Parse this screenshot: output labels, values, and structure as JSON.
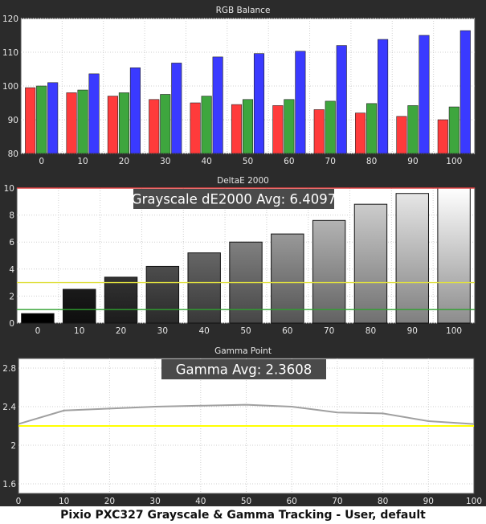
{
  "caption": "Pixio PXC327 Grayscale & Gamma Tracking - User, default",
  "chart_data": [
    {
      "type": "bar",
      "title": "RGB Balance",
      "categories": [
        "0",
        "10",
        "20",
        "30",
        "40",
        "50",
        "60",
        "70",
        "80",
        "90",
        "100"
      ],
      "ylim": [
        80,
        120
      ],
      "yticks": [
        "80",
        "90",
        "100",
        "110",
        "120"
      ],
      "grid": true,
      "series": [
        {
          "color": "#ff3b3b",
          "values": [
            99.5,
            98.0,
            97.0,
            96.0,
            95.0,
            94.5,
            94.2,
            93.0,
            92.0,
            91.0,
            90.0
          ]
        },
        {
          "color": "#3ea63e",
          "values": [
            100.0,
            98.8,
            98.0,
            97.5,
            97.0,
            96.0,
            96.0,
            95.5,
            94.8,
            94.2,
            93.8
          ]
        },
        {
          "color": "#3a3aff",
          "values": [
            101.0,
            103.6,
            105.4,
            106.8,
            108.6,
            109.6,
            110.3,
            112.0,
            113.8,
            115.0,
            116.4
          ]
        }
      ]
    },
    {
      "type": "bar",
      "title": "DeltaE 2000",
      "annotation": "Grayscale dE2000 Avg: 6.4097",
      "categories": [
        "0",
        "10",
        "20",
        "30",
        "40",
        "50",
        "60",
        "70",
        "80",
        "90",
        "100"
      ],
      "values": [
        0.7,
        2.5,
        3.4,
        4.2,
        5.2,
        6.0,
        6.6,
        7.6,
        8.8,
        9.6,
        10.0
      ],
      "ylim": [
        0,
        10
      ],
      "yticks": [
        "0",
        "2",
        "4",
        "6",
        "8",
        "10"
      ],
      "reference_lines": [
        {
          "value": 10,
          "color": "#e04040"
        },
        {
          "value": 3,
          "color": "#e0e040"
        },
        {
          "value": 1,
          "color": "#2fa02f"
        }
      ],
      "grid": true
    },
    {
      "type": "line",
      "title": "Gamma Point",
      "annotation": "Gamma Avg: 2.3608",
      "x": [
        0,
        10,
        20,
        30,
        40,
        50,
        60,
        70,
        80,
        90,
        100
      ],
      "xticks": [
        "0",
        "10",
        "20",
        "30",
        "40",
        "50",
        "60",
        "70",
        "80",
        "90",
        "100"
      ],
      "ylim": [
        1.5,
        2.9
      ],
      "yticks": [
        "1.6",
        "2",
        "2.4",
        "2.8"
      ],
      "grid": true,
      "series": [
        {
          "color": "#a0a0a0",
          "values": [
            2.22,
            2.36,
            2.38,
            2.4,
            2.41,
            2.42,
            2.4,
            2.34,
            2.33,
            2.25,
            2.22
          ]
        },
        {
          "color": "#ffff00",
          "values": [
            2.2,
            2.2,
            2.2,
            2.2,
            2.2,
            2.2,
            2.2,
            2.2,
            2.2,
            2.2,
            2.2
          ]
        }
      ]
    }
  ]
}
